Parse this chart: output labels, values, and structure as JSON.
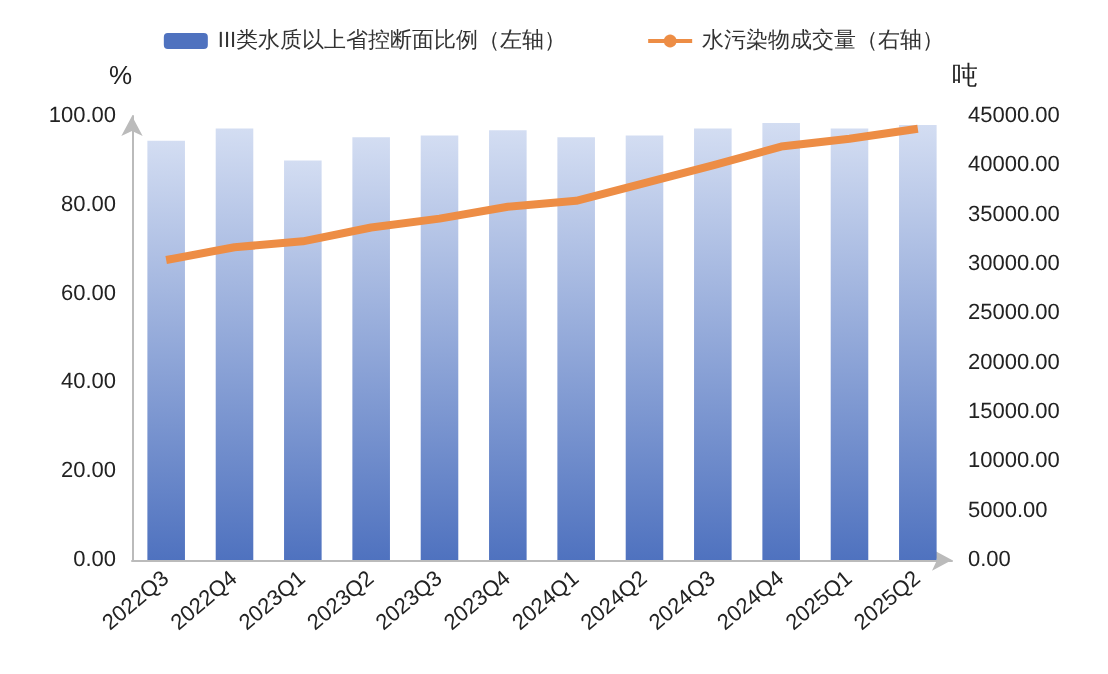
{
  "chart_data": {
    "type": "bar",
    "categories": [
      "2022Q3",
      "2022Q4",
      "2023Q1",
      "2023Q2",
      "2023Q3",
      "2023Q4",
      "2024Q1",
      "2024Q2",
      "2024Q3",
      "2024Q4",
      "2025Q1",
      "2025Q2"
    ],
    "series": [
      {
        "name": "III类水质以上省控断面比例（左轴）",
        "color": "#4f72bf",
        "values": [
          94.4,
          97.2,
          90.0,
          95.2,
          95.6,
          96.8,
          95.2,
          95.6,
          97.2,
          98.4,
          97.2,
          98.0
        ]
      },
      {
        "name": "水污染物成交量（右轴）",
        "type": "line",
        "axis": "y2",
        "color": "#ed8d45",
        "values": [
          30400,
          31700,
          32300,
          33700,
          34600,
          35800,
          36400,
          38200,
          40000,
          41900,
          42700,
          43700
        ]
      }
    ],
    "ylabel": "%",
    "y2label": "吨",
    "ylim": [
      0,
      100
    ],
    "yticks": [
      {
        "value": 0,
        "label": "0.00"
      },
      {
        "value": 20,
        "label": "20.00"
      },
      {
        "value": 40,
        "label": "40.00"
      },
      {
        "value": 60,
        "label": "60.00"
      },
      {
        "value": 80,
        "label": "80.00"
      },
      {
        "value": 100,
        "label": "100.00"
      }
    ],
    "y2lim": [
      0,
      45000
    ],
    "y2ticks": [
      {
        "value": 0,
        "label": "0.00"
      },
      {
        "value": 5000,
        "label": "5000.00"
      },
      {
        "value": 10000,
        "label": "10000.00"
      },
      {
        "value": 15000,
        "label": "15000.00"
      },
      {
        "value": 20000,
        "label": "20000.00"
      },
      {
        "value": 25000,
        "label": "25000.00"
      },
      {
        "value": 30000,
        "label": "30000.00"
      },
      {
        "value": 35000,
        "label": "35000.00"
      },
      {
        "value": 40000,
        "label": "40000.00"
      },
      {
        "value": 45000,
        "label": "45000.00"
      }
    ],
    "grid": false,
    "legend": "top",
    "marker": "none"
  }
}
